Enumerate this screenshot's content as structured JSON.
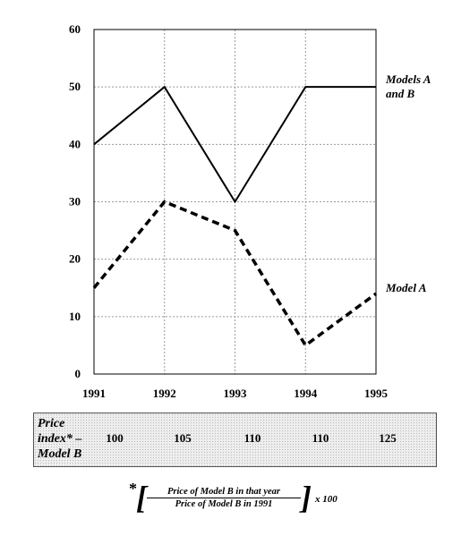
{
  "chart_data": {
    "type": "line",
    "x": [
      1991,
      1992,
      1993,
      1994,
      1995
    ],
    "xticks": [
      "1991",
      "1992",
      "1993",
      "1994",
      "1995"
    ],
    "yticks": [
      "0",
      "10",
      "20",
      "30",
      "40",
      "50",
      "60"
    ],
    "ylim": [
      0,
      60
    ],
    "grid": true,
    "series": [
      {
        "name": "Models A and B",
        "name_lines": [
          "Models A",
          "and B"
        ],
        "style": "solid",
        "values": [
          40,
          50,
          30,
          50,
          50
        ]
      },
      {
        "name": "Model A",
        "name_lines": [
          "Model A"
        ],
        "style": "dashed",
        "values": [
          15,
          30,
          25,
          5,
          14
        ]
      }
    ]
  },
  "price_index": {
    "label_lines": [
      "Price",
      "index* –",
      "Model B"
    ],
    "values": [
      "100",
      "105",
      "110",
      "110",
      "125"
    ]
  },
  "footnote": {
    "star": "*",
    "numerator": "Price of Model B in that year",
    "denominator": "Price of Model B in 1991",
    "multiplier": "x 100"
  },
  "colors": {
    "line": "#000000",
    "grid": "#9a9a9a",
    "box_fill": "#eeeeee"
  }
}
